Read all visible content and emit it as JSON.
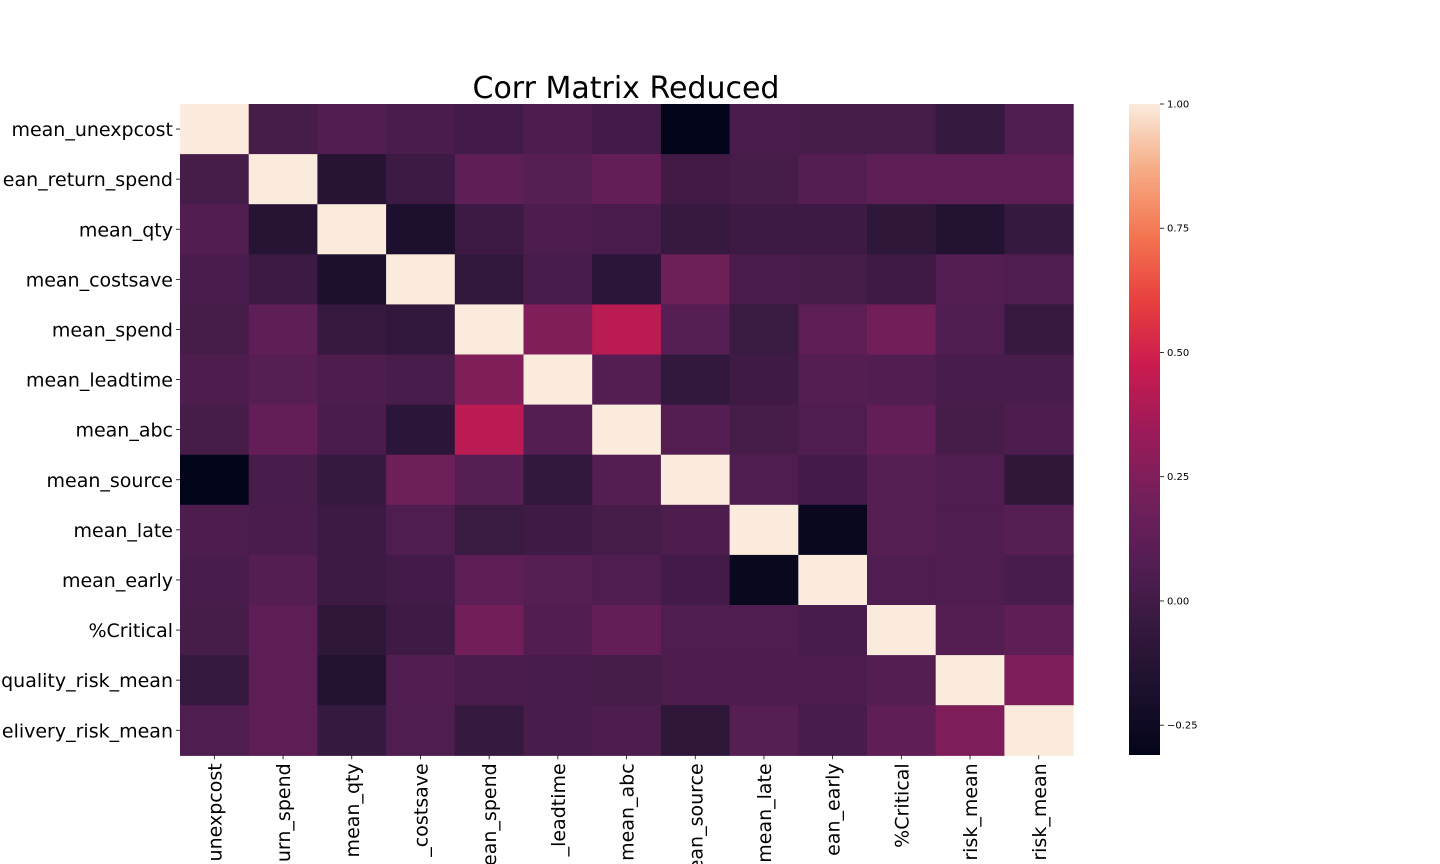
{
  "chart_data": {
    "type": "heatmap",
    "title": "Corr Matrix Reduced",
    "row_labels": [
      "mean_unexpcost",
      "mean_return_spend",
      "mean_qty",
      "mean_costsave",
      "mean_spend",
      "mean_leadtime",
      "mean_abc",
      "mean_source",
      "mean_late",
      "mean_early",
      "%Critical",
      "quality_risk_mean",
      "delivery_risk_mean"
    ],
    "col_labels_visible": [
      "unexpcost",
      "urn_spend",
      "mean_qty",
      "_costsave",
      "ean_spend",
      "_leadtime",
      "mean_abc",
      "ean_source",
      "mean_late",
      "ean_early",
      "%Critical",
      "risk_mean",
      "risk_mean"
    ],
    "row_labels_visible": [
      "mean_unexpcost",
      "ean_return_spend",
      "mean_qty",
      "mean_costsave",
      "mean_spend",
      "mean_leadtime",
      "mean_abc",
      "mean_source",
      "mean_late",
      "mean_early",
      "%Critical",
      "quality_risk_mean",
      "elivery_risk_mean"
    ],
    "values": [
      [
        1.0,
        0.02,
        0.07,
        0.04,
        0.01,
        0.05,
        0.01,
        -0.31,
        0.04,
        0.02,
        0.02,
        -0.05,
        0.06
      ],
      [
        0.02,
        1.0,
        -0.12,
        -0.02,
        0.12,
        0.09,
        0.14,
        0.0,
        0.02,
        0.08,
        0.11,
        0.11,
        0.11
      ],
      [
        0.07,
        -0.12,
        1.0,
        -0.18,
        -0.02,
        0.05,
        0.04,
        -0.04,
        -0.02,
        -0.02,
        -0.08,
        -0.14,
        -0.05
      ],
      [
        0.04,
        -0.02,
        -0.18,
        1.0,
        -0.07,
        0.03,
        -0.1,
        0.18,
        0.04,
        0.02,
        -0.01,
        0.08,
        0.06
      ],
      [
        0.02,
        0.12,
        -0.04,
        -0.07,
        1.0,
        0.25,
        0.43,
        0.09,
        -0.03,
        0.11,
        0.2,
        0.06,
        -0.04
      ],
      [
        0.05,
        0.09,
        0.05,
        0.03,
        0.25,
        1.0,
        0.08,
        -0.06,
        -0.01,
        0.08,
        0.07,
        0.03,
        0.03
      ],
      [
        0.02,
        0.14,
        0.04,
        -0.1,
        0.43,
        0.08,
        1.0,
        0.08,
        0.02,
        0.06,
        0.14,
        0.02,
        0.05
      ],
      [
        -0.31,
        0.03,
        -0.05,
        0.18,
        0.09,
        -0.06,
        0.08,
        1.0,
        0.06,
        0.01,
        0.09,
        0.06,
        -0.08
      ],
      [
        0.05,
        0.04,
        -0.02,
        0.06,
        -0.03,
        -0.01,
        0.02,
        0.05,
        1.0,
        -0.28,
        0.09,
        0.06,
        0.09
      ],
      [
        0.03,
        0.08,
        -0.02,
        0.01,
        0.11,
        0.09,
        0.06,
        0.01,
        -0.28,
        1.0,
        0.06,
        0.06,
        0.03
      ],
      [
        0.02,
        0.11,
        -0.08,
        -0.01,
        0.2,
        0.07,
        0.14,
        0.06,
        0.06,
        0.03,
        1.0,
        0.08,
        0.13
      ],
      [
        -0.05,
        0.11,
        -0.14,
        0.07,
        0.04,
        0.03,
        0.02,
        0.05,
        0.05,
        0.05,
        0.08,
        1.0,
        0.24
      ],
      [
        0.06,
        0.11,
        -0.05,
        0.06,
        -0.05,
        0.03,
        0.05,
        -0.08,
        0.09,
        0.03,
        0.13,
        0.24,
        1.0
      ]
    ],
    "vmin": -0.31,
    "vmax": 1.0,
    "colormap": "rocket",
    "colorbar_ticks": [
      1.0,
      0.75,
      0.5,
      0.25,
      0.0,
      -0.25
    ],
    "colorbar_tick_labels": [
      "1.00",
      "0.75",
      "0.50",
      "0.25",
      "0.00",
      "−0.25"
    ],
    "grid": false,
    "legend": "colorbar-right"
  }
}
